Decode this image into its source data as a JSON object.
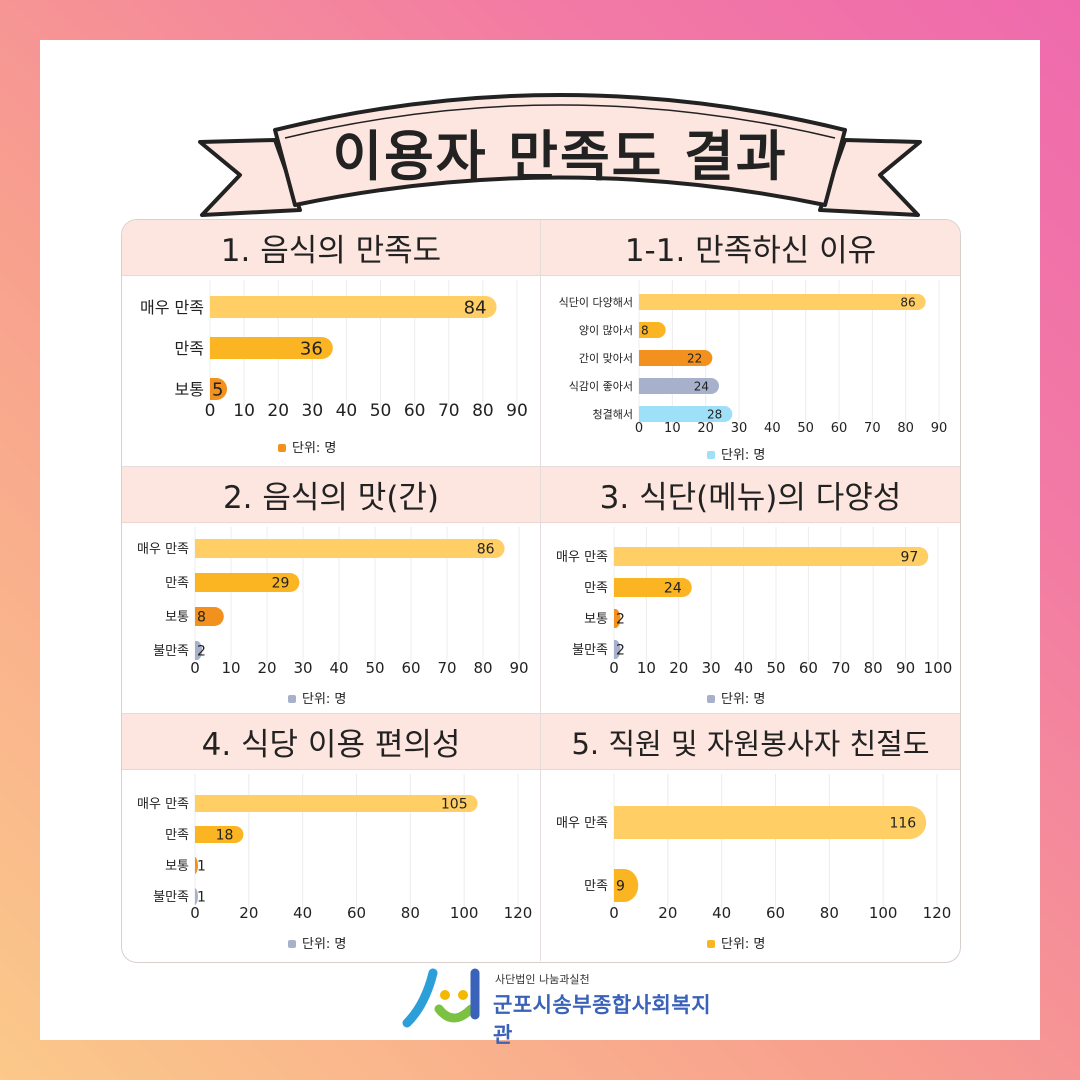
{
  "page": {
    "title": "이용자 만족도 결과",
    "org_subtitle": "사단법인 나눔과실천",
    "org_name": "군포시송부종합사회복지관",
    "unit_label": "단위: 명"
  },
  "colors": {
    "yellow_light": "#ffcf66",
    "yellow": "#fbb523",
    "orange": "#f3911f",
    "grey_blue": "#a7b1cc",
    "sky": "#9ee0f7",
    "header_bg": "#fde6df",
    "org_blue": "#3a62b8"
  },
  "chart_data": [
    {
      "type": "bar",
      "orientation": "horizontal",
      "title": "1. 음식의 만족도",
      "categories": [
        "매우 만족",
        "만족",
        "보통"
      ],
      "values": [
        84,
        36,
        5
      ],
      "colors": [
        "#ffcf66",
        "#fbb523",
        "#f3911f"
      ],
      "xlim": [
        0,
        90
      ],
      "xticks": [
        0,
        10,
        20,
        30,
        40,
        50,
        60,
        70,
        80,
        90
      ],
      "legend": "단위: 명",
      "legend_color": "#f3911f"
    },
    {
      "type": "bar",
      "orientation": "horizontal",
      "title": "1-1. 만족하신 이유",
      "categories": [
        "식단이 다양해서",
        "양이 많아서",
        "간이 맞아서",
        "식감이 좋아서",
        "청결해서"
      ],
      "values": [
        86,
        8,
        22,
        24,
        28
      ],
      "colors": [
        "#ffcf66",
        "#fbb523",
        "#f3911f",
        "#a7b1cc",
        "#9ee0f7"
      ],
      "xlim": [
        0,
        90
      ],
      "xticks": [
        0,
        10,
        20,
        30,
        40,
        50,
        60,
        70,
        80,
        90
      ],
      "legend": "단위: 명",
      "legend_color": "#9ee0f7"
    },
    {
      "type": "bar",
      "orientation": "horizontal",
      "title": "2. 음식의 맛(간)",
      "categories": [
        "매우 만족",
        "만족",
        "보통",
        "불만족"
      ],
      "values": [
        86,
        29,
        8,
        2
      ],
      "colors": [
        "#ffcf66",
        "#fbb523",
        "#f3911f",
        "#a7b1cc"
      ],
      "xlim": [
        0,
        90
      ],
      "xticks": [
        0,
        10,
        20,
        30,
        40,
        50,
        60,
        70,
        80,
        90
      ],
      "legend": "단위: 명",
      "legend_color": "#a7b1cc"
    },
    {
      "type": "bar",
      "orientation": "horizontal",
      "title": "3. 식단(메뉴)의 다양성",
      "categories": [
        "매우 만족",
        "만족",
        "보통",
        "불만족"
      ],
      "values": [
        97,
        24,
        2,
        2
      ],
      "colors": [
        "#ffcf66",
        "#fbb523",
        "#f3911f",
        "#a7b1cc"
      ],
      "xlim": [
        0,
        100
      ],
      "xticks": [
        0,
        10,
        20,
        30,
        40,
        50,
        60,
        70,
        80,
        90,
        100
      ],
      "legend": "단위: 명",
      "legend_color": "#a7b1cc"
    },
    {
      "type": "bar",
      "orientation": "horizontal",
      "title": "4. 식당 이용 편의성",
      "categories": [
        "매우 만족",
        "만족",
        "보통",
        "불만족"
      ],
      "values": [
        105,
        18,
        1,
        1
      ],
      "colors": [
        "#ffcf66",
        "#fbb523",
        "#f3911f",
        "#a7b1cc"
      ],
      "xlim": [
        0,
        120
      ],
      "xticks": [
        0,
        20,
        40,
        60,
        80,
        100,
        120
      ],
      "legend": "단위: 명",
      "legend_color": "#a7b1cc"
    },
    {
      "type": "bar",
      "orientation": "horizontal",
      "title": "5. 직원 및 자원봉사자 친절도",
      "categories": [
        "매우 만족",
        "만족"
      ],
      "values": [
        116,
        9
      ],
      "colors": [
        "#ffcf66",
        "#fbb523"
      ],
      "xlim": [
        0,
        120
      ],
      "xticks": [
        0,
        20,
        40,
        60,
        80,
        100,
        120
      ],
      "legend": "단위: 명",
      "legend_color": "#fbb523"
    }
  ]
}
